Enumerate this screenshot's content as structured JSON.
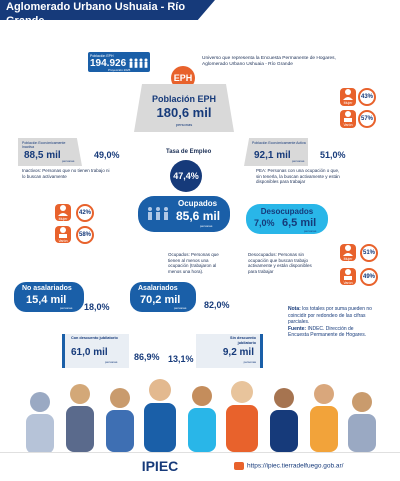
{
  "header": {
    "title": "Aglomerado Urbano Ushuaia - Río Grande"
  },
  "pop_card": {
    "label": "Población EPH",
    "value": "194.926",
    "sub": "Proyección 2025"
  },
  "universe_note": "Universo que representa la Encuesta Permanente de Hogares, Aglomerado Urbano Ushuaia - Río Grande",
  "eph": {
    "badge": "EPH",
    "title": "Población EPH",
    "value": "180,6 mil",
    "unit": "personas"
  },
  "gender_top": {
    "mujer_label": "Mujer",
    "mujer_pct": "43%",
    "varon_label": "Varón",
    "varon_pct": "57%"
  },
  "inactive": {
    "label": "Población Económicamente Inactiva",
    "value": "88,5 mil",
    "unit": "personas",
    "pct": "49,0%",
    "note": "Inactivos: Personas que no tienen trabajo ni lo buscan activamente"
  },
  "active": {
    "label": "Población Económicamente Activa",
    "value": "92,1 mil",
    "unit": "personas",
    "pct": "51,0%",
    "note": "PEA: Personas con una ocupación o que, sin tenerla, la buscan activamente y están disponibles para trabajar"
  },
  "employment_rate": {
    "label": "Tasa de Empleo",
    "value": "47,4%"
  },
  "occupied": {
    "label": "Ocupados",
    "value": "85,6 mil",
    "unit": "personas",
    "note": "Ocupados: Personas que tienen al menos una ocupación (trabajaron al menos una hora)."
  },
  "gender_occ": {
    "mujer_pct": "42%",
    "mujer_label": "Mujer",
    "varon_pct": "58%",
    "varon_label": "Varón"
  },
  "unemployed": {
    "label": "Desocupados",
    "value": "6,5 mil",
    "unit": "personas",
    "pct": "7,0%",
    "note": "Desocupados: Personas sin ocupación que buscan trabajo activamente y están disponibles para trabajar"
  },
  "gender_unemp": {
    "mujer_pct": "51%",
    "mujer_label": "Mujer",
    "varon_pct": "49%",
    "varon_label": "Varón"
  },
  "non_salaried": {
    "label": "No asalariados",
    "value": "15,4 mil",
    "unit": "personas",
    "pct": "18,0%"
  },
  "salaried": {
    "label": "Asalariados",
    "value": "70,2 mil",
    "unit": "personas",
    "pct": "82,0%"
  },
  "with_pension": {
    "label": "Con descuento jubilatorio",
    "value": "61,0 mil",
    "unit": "personas",
    "pct": "86,9%"
  },
  "without_pension": {
    "label": "Sin descuento jubilatorio",
    "value": "9,2 mil",
    "unit": "personas",
    "pct": "13,1%"
  },
  "footnote": {
    "nota_label": "Nota:",
    "nota_text": " los totales por suma pueden no coincidir por redondeo de las cifras parciales.",
    "fuente_label": "Fuente:",
    "fuente_text": " INDEC. Dirección de Encuesta Permanente de Hogares."
  },
  "footer": {
    "url": "https://ipiec.tierradelfuego.gob.ar/",
    "logo": "IPIEC"
  },
  "colors": {
    "navy": "#163a7a",
    "blue": "#1a5fa8",
    "cyan": "#29b6e8",
    "orange": "#e8622c",
    "gray": "#d9d9d9"
  }
}
